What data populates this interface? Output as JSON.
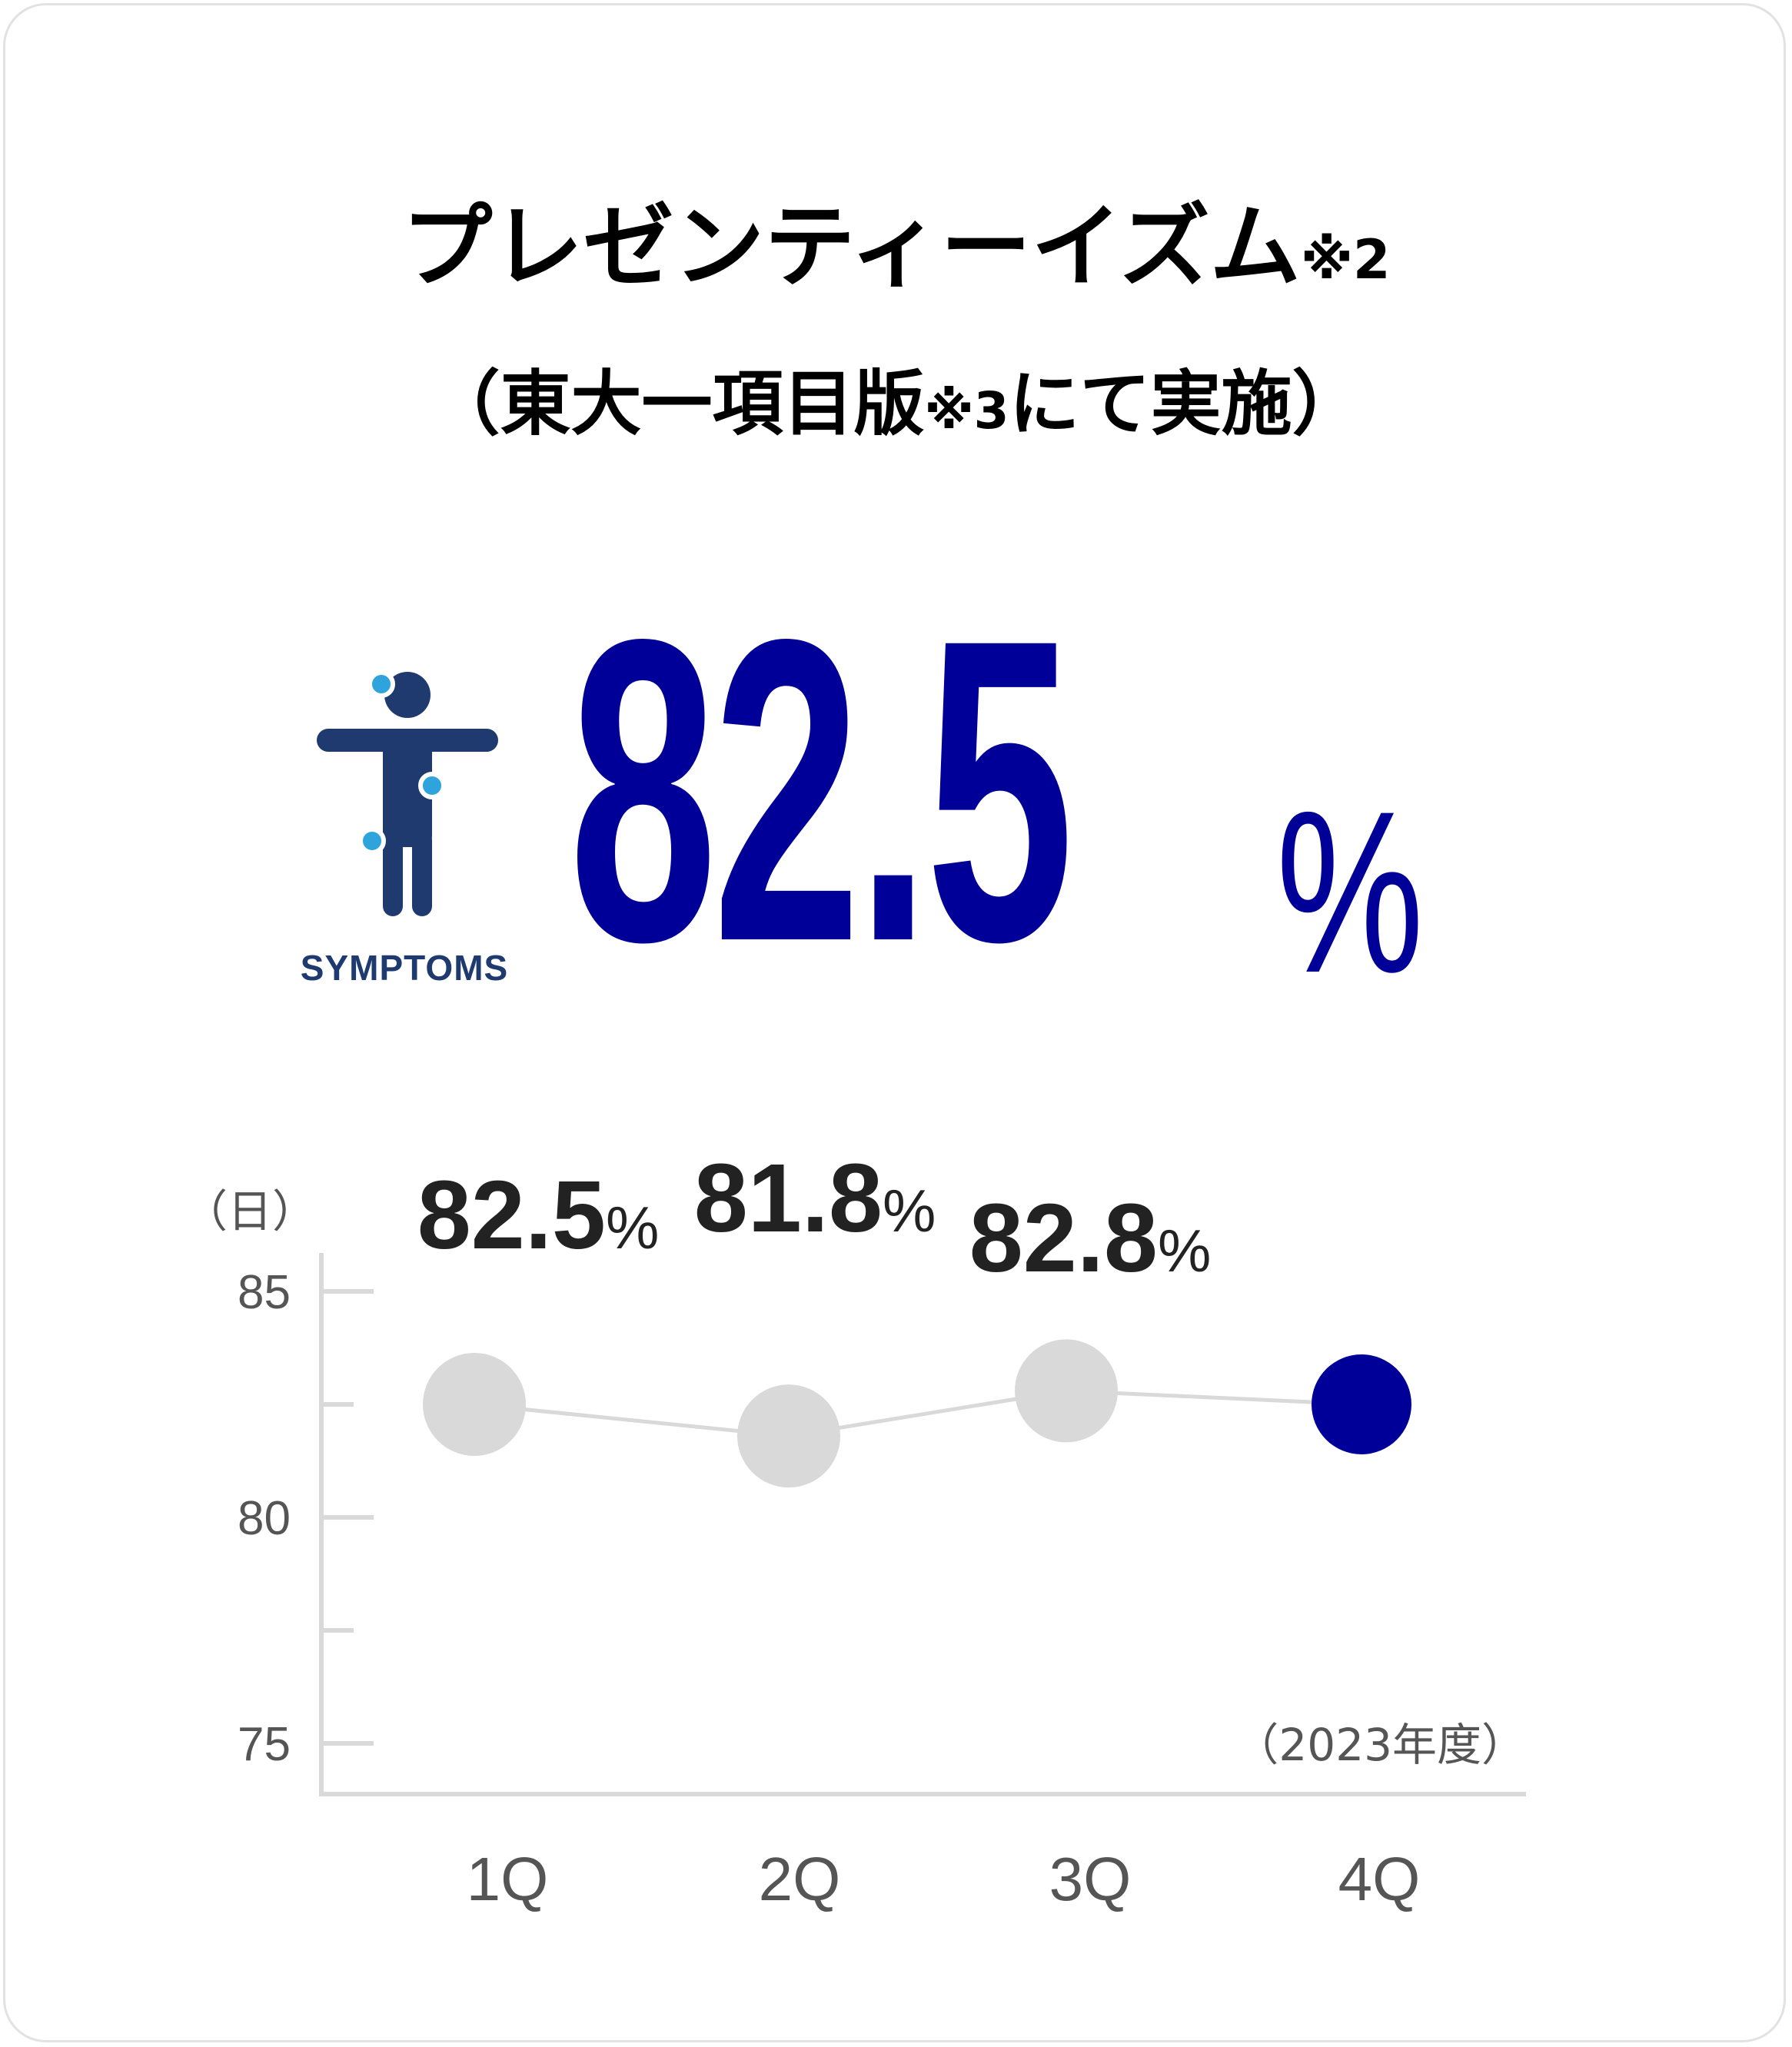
{
  "title": "プレゼンティーイズム",
  "title_note": "※2",
  "subtitle_open": "（東大一項目版",
  "subtitle_note": "※3",
  "subtitle_close": "にて実施）",
  "icon": {
    "name": "symptoms-person-icon",
    "label": "SYMPTOMS",
    "body_color": "#1f3a6e",
    "dot_color": "#2ea3dc"
  },
  "headline": {
    "value": "82.5",
    "unit": "%",
    "color": "#000099"
  },
  "chart_data": {
    "type": "line",
    "categories": [
      "1Q",
      "2Q",
      "3Q",
      "4Q"
    ],
    "values": [
      82.5,
      81.8,
      82.8,
      82.5
    ],
    "data_labels": [
      "82.5",
      "81.8",
      "82.8",
      ""
    ],
    "data_label_unit": "%",
    "y_unit_label": "（日）",
    "period_label": "（2023年度）",
    "yticks": [
      75,
      80,
      85
    ],
    "ylim": [
      74,
      86
    ],
    "highlight_index": 3,
    "colors": {
      "past_marker": "#d9d9d9",
      "line": "#d9d9d9",
      "highlight_marker": "#000099",
      "axis": "#d9d9d9"
    }
  }
}
